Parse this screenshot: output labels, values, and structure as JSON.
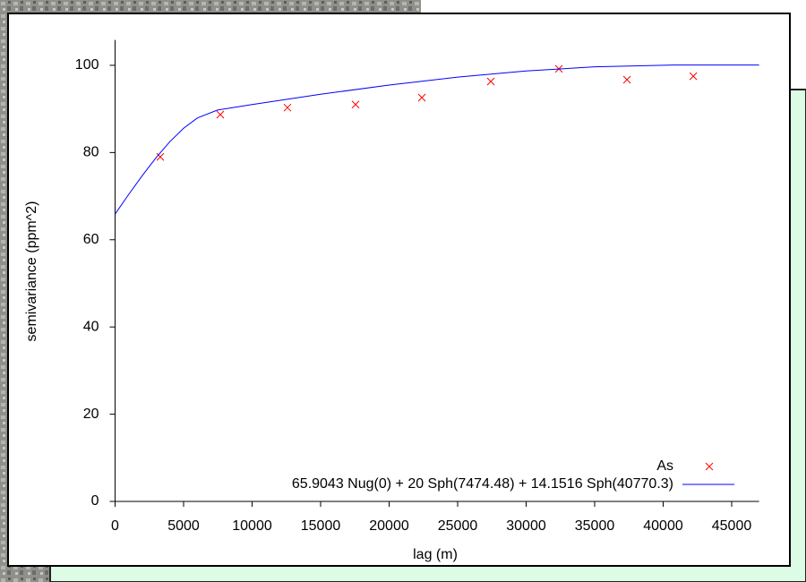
{
  "chart_data": {
    "type": "scatter",
    "x_label": "lag (m)",
    "y_label": "semivariance (ppm^2)",
    "xlim": [
      0,
      47000
    ],
    "ylim": [
      0,
      105
    ],
    "xticks": [
      0,
      5000,
      10000,
      15000,
      20000,
      25000,
      30000,
      35000,
      40000,
      45000
    ],
    "yticks": [
      0,
      20,
      40,
      60,
      80,
      100
    ],
    "legend": "bottom-right",
    "series": [
      {
        "name": "As",
        "color": "#ff0000",
        "marker": "x",
        "x": [
          3300,
          7680,
          12580,
          17550,
          22390,
          27420,
          32390,
          37360,
          42200
        ],
        "values": [
          79.0,
          88.7,
          90.3,
          91.0,
          92.6,
          96.3,
          99.2,
          96.7,
          97.5
        ]
      },
      {
        "name": "65.9043 Nug(0) + 20 Sph(7474.48) + 14.1516 Sph(40770.3)",
        "color": "#0000ff",
        "type": "line",
        "x": [
          0,
          1000,
          2000,
          3000,
          4000,
          5000,
          6000,
          7474,
          10000,
          15000,
          20000,
          25000,
          30000,
          35000,
          40770,
          47000
        ],
        "values": [
          65.9,
          70.42,
          74.78,
          78.86,
          82.5,
          85.57,
          87.92,
          89.75,
          91.01,
          93.36,
          95.48,
          97.29,
          98.7,
          99.65,
          100.06,
          100.06
        ]
      }
    ]
  }
}
